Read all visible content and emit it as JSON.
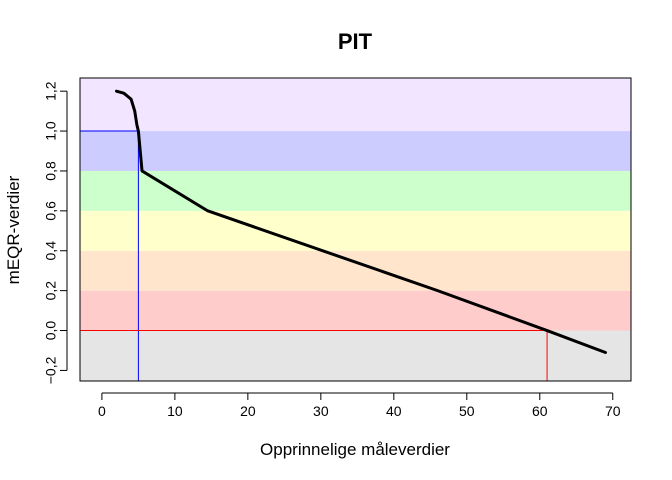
{
  "chart_data": {
    "type": "line",
    "title": "PIT",
    "xlabel": "Opprinnelige måleverdier",
    "ylabel": "mEQR-verdier",
    "xlim": [
      -3,
      72.5
    ],
    "ylim": [
      -0.253,
      1.266
    ],
    "x_ticks": [
      0,
      10,
      20,
      30,
      40,
      50,
      60,
      70
    ],
    "x_tick_labels": [
      "0",
      "10",
      "20",
      "30",
      "40",
      "50",
      "60",
      "70"
    ],
    "y_ticks": [
      -0.2,
      0.0,
      0.2,
      0.4,
      0.6,
      0.8,
      1.0,
      1.2
    ],
    "y_tick_labels": [
      "−0,2",
      "0,0",
      "0,2",
      "0,4",
      "0,6",
      "0,8",
      "1,0",
      "1,2"
    ],
    "grid": false,
    "bands": [
      {
        "from": -0.253,
        "to": 0.0,
        "color": "#e5e5e5"
      },
      {
        "from": 0.0,
        "to": 0.2,
        "color": "#ffcccc"
      },
      {
        "from": 0.2,
        "to": 0.4,
        "color": "#ffe5cc"
      },
      {
        "from": 0.4,
        "to": 0.6,
        "color": "#ffffcc"
      },
      {
        "from": 0.6,
        "to": 0.8,
        "color": "#ccffcc"
      },
      {
        "from": 0.8,
        "to": 1.0,
        "color": "#ccccff"
      },
      {
        "from": 1.0,
        "to": 1.266,
        "color": "#f2e5ff"
      }
    ],
    "series": [
      {
        "color": "#000000",
        "x": [
          2.0,
          3.0,
          4.0,
          4.5,
          4.8,
          5.0,
          5.2,
          5.5,
          14.5,
          46.0,
          61.0,
          69.0
        ],
        "y": [
          1.2,
          1.19,
          1.16,
          1.1,
          1.03,
          1.0,
          0.92,
          0.8,
          0.6,
          0.2,
          0.0,
          -0.11
        ]
      }
    ],
    "reference_lines": [
      {
        "name": "blue",
        "x": 5.0,
        "y": 1.0,
        "color": "#0000ff"
      },
      {
        "name": "red",
        "x": 61.0,
        "y": 0.0,
        "color": "#ff0000"
      }
    ]
  }
}
